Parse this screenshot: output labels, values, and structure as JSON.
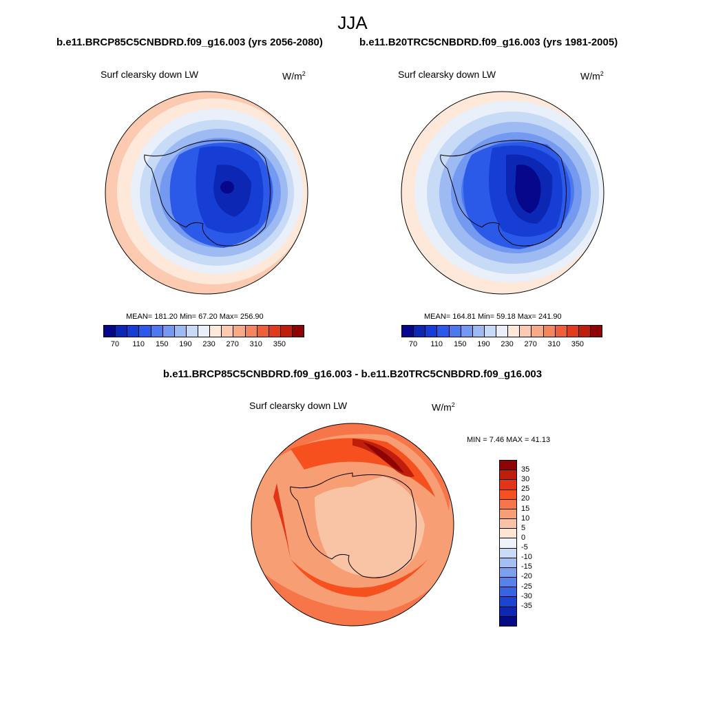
{
  "title": "JJA",
  "runs": {
    "left_title": "b.e11.BRCP85C5CNBDRD.f09_g16.003 (yrs 2056-2080)",
    "right_title": "b.e11.B20TRC5CNBDRD.f09_g16.003 (yrs 1981-2005)",
    "diff_title": "b.e11.BRCP85C5CNBDRD.f09_g16.003 - b.e11.B20TRC5CNBDRD.f09_g16.003"
  },
  "variable": "Surf clearsky down LW",
  "units": {
    "base": "W/m",
    "exp": "2"
  },
  "panels": {
    "left": {
      "stats": "MEAN= 181.20  Min=  67.20  Max= 256.90"
    },
    "right": {
      "stats": "MEAN= 164.81  Min=  59.18  Max= 241.90"
    },
    "diff": {
      "stats": "MIN =   7.46 MAX =  41.13"
    }
  },
  "colorbars": {
    "abs_colors": [
      "#06078a",
      "#0c27b3",
      "#163ed4",
      "#2b5ae8",
      "#4c79ee",
      "#7499f0",
      "#9dbaf3",
      "#c7dbf7",
      "#e9f0fa",
      "#fde8d9",
      "#fbcab0",
      "#f8a988",
      "#f3855f",
      "#ec5f3a",
      "#de3c1c",
      "#bf1e0b",
      "#8e0404"
    ],
    "abs_ticks": [
      "70",
      "110",
      "150",
      "190",
      "230",
      "270",
      "310",
      "350"
    ],
    "diff_colors": [
      "#8e0404",
      "#bf1e0b",
      "#e23416",
      "#f7501f",
      "#f77649",
      "#f89e74",
      "#f9c3a6",
      "#fde5d4",
      "#eef3fa",
      "#c9dbf6",
      "#a4c0f2",
      "#7da0ee",
      "#5782ea",
      "#3863e2",
      "#1c44d3",
      "#0c28b3",
      "#050b85"
    ],
    "diff_ticks": [
      "35",
      "30",
      "25",
      "20",
      "15",
      "10",
      "5",
      "0",
      "-5",
      "-10",
      "-15",
      "-20",
      "-25",
      "-30",
      "-35"
    ]
  },
  "chart_data": [
    {
      "type": "heatmap",
      "projection": "south polar stereographic",
      "field": "Surf clearsky down LW",
      "units": "W/m2",
      "period": "JJA",
      "dataset": "b.e11.BRCP85C5CNBDRD.f09_g16.003 (yrs 2056-2080)",
      "mean": 181.2,
      "min": 67.2,
      "max": 256.9,
      "contour_levels": [
        70,
        90,
        110,
        130,
        150,
        170,
        190,
        210,
        230,
        250,
        270,
        290,
        310,
        330,
        350
      ]
    },
    {
      "type": "heatmap",
      "projection": "south polar stereographic",
      "field": "Surf clearsky down LW",
      "units": "W/m2",
      "period": "JJA",
      "dataset": "b.e11.B20TRC5CNBDRD.f09_g16.003 (yrs 1981-2005)",
      "mean": 164.81,
      "min": 59.18,
      "max": 241.9,
      "contour_levels": [
        70,
        90,
        110,
        130,
        150,
        170,
        190,
        210,
        230,
        250,
        270,
        290,
        310,
        330,
        350
      ]
    },
    {
      "type": "heatmap",
      "projection": "south polar stereographic",
      "field": "Surf clearsky down LW",
      "units": "W/m2",
      "period": "JJA",
      "dataset": "b.e11.BRCP85C5CNBDRD.f09_g16.003 - b.e11.B20TRC5CNBDRD.f09_g16.003",
      "min": 7.46,
      "max": 41.13,
      "contour_levels": [
        -35,
        -30,
        -25,
        -20,
        -15,
        -10,
        -5,
        0,
        5,
        10,
        15,
        20,
        25,
        30,
        35
      ]
    }
  ]
}
